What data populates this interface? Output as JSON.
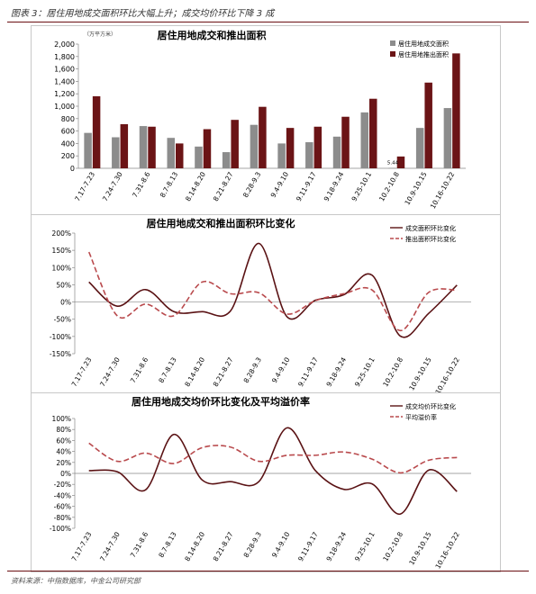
{
  "header": {
    "title": "图表 3：居住用地成交面积环比大幅上升；成交均价环比下降 3 成"
  },
  "footer": {
    "source": "资料来源：中指数据库，中金公司研究部"
  },
  "chart_data": [
    {
      "type": "bar",
      "title": "居住用地成交和推出面积",
      "unit_label": "（万平方米）",
      "categories": [
        "7.17-7.23",
        "7.24-7.30",
        "7.31-8.6",
        "8.7-8.13",
        "8.14-8.20",
        "8.21-8.27",
        "8.28-9.3",
        "9.4-9.10",
        "9.11-9.17",
        "9.18-9.24",
        "9.25-10.1",
        "10.2-10.8",
        "10.9-10.15",
        "10.16-10.22"
      ],
      "series": [
        {
          "name": "居住用地成交面积",
          "color": "#8c8c8c",
          "values": [
            570,
            500,
            680,
            490,
            350,
            260,
            700,
            400,
            420,
            510,
            900,
            5.44,
            650,
            970
          ]
        },
        {
          "name": "居住用地推出面积",
          "color": "#6b1416",
          "values": [
            1160,
            710,
            670,
            400,
            630,
            780,
            990,
            650,
            670,
            830,
            1120,
            190,
            1380,
            1850
          ]
        }
      ],
      "data_labels": [
        {
          "text": "5.44"
        }
      ],
      "ylim": [
        0,
        2000
      ],
      "yticks": [
        "0",
        "200",
        "400",
        "600",
        "800",
        "1,000",
        "1,200",
        "1,400",
        "1,600",
        "1,800",
        "2,000"
      ],
      "legend_position": "top-right"
    },
    {
      "type": "line",
      "title": "居住用地成交和推出面积环比变化",
      "categories": [
        "7.17-7.23",
        "7.24-7.30",
        "7.31-8.6",
        "8.7-8.13",
        "8.14-8.20",
        "8.21-8.27",
        "8.28-9.3",
        "9.4-9.10",
        "9.11-9.17",
        "9.18-9.24",
        "9.25-10.1",
        "10.2-10.8",
        "10.9-10.15",
        "10.16-10.22"
      ],
      "series": [
        {
          "name": "成交面积环比变化",
          "color": "#5a1214",
          "dash": false,
          "values": [
            0.58,
            -0.12,
            0.36,
            -0.28,
            -0.28,
            -0.26,
            1.7,
            -0.43,
            0.05,
            0.21,
            0.78,
            -0.99,
            -0.33,
            0.49
          ]
        },
        {
          "name": "推出面积环比变化",
          "color": "#b94a4d",
          "dash": true,
          "values": [
            1.45,
            -0.4,
            -0.06,
            -0.4,
            0.58,
            0.24,
            0.27,
            -0.35,
            0.04,
            0.24,
            0.35,
            -0.83,
            0.28,
            0.34
          ]
        }
      ],
      "ylim": [
        -1.5,
        2.0
      ],
      "yticks": [
        "-150%",
        "-100%",
        "-50%",
        "0%",
        "50%",
        "100%",
        "150%",
        "200%"
      ],
      "legend_position": "top-right"
    },
    {
      "type": "line",
      "title": "居住用地成交均价环比变化及平均溢价率",
      "categories": [
        "7.17-7.23",
        "7.24-7.30",
        "7.31-8.6",
        "8.7-8.13",
        "8.14-8.20",
        "8.21-8.27",
        "8.28-9.3",
        "9.4-9.10",
        "9.11-9.17",
        "9.18-9.24",
        "9.25-10.1",
        "10.2-10.8",
        "10.9-10.15",
        "10.16-10.22"
      ],
      "series": [
        {
          "name": "成交均价环比变化",
          "color": "#5a1214",
          "dash": false,
          "values": [
            0.05,
            0.03,
            -0.3,
            0.71,
            -0.12,
            -0.15,
            -0.15,
            0.83,
            0.05,
            -0.29,
            -0.19,
            -0.74,
            0.06,
            -0.33
          ]
        },
        {
          "name": "平均溢价率",
          "color": "#b94a4d",
          "dash": true,
          "values": [
            0.55,
            0.22,
            0.37,
            0.18,
            0.47,
            0.48,
            0.22,
            0.33,
            0.33,
            0.39,
            0.26,
            0.01,
            0.24,
            0.29
          ]
        }
      ],
      "ylim": [
        -1.0,
        1.0
      ],
      "yticks": [
        "-100%",
        "-80%",
        "-60%",
        "-40%",
        "-20%",
        "0%",
        "20%",
        "40%",
        "60%",
        "80%",
        "100%"
      ],
      "legend_position": "top-right"
    }
  ]
}
